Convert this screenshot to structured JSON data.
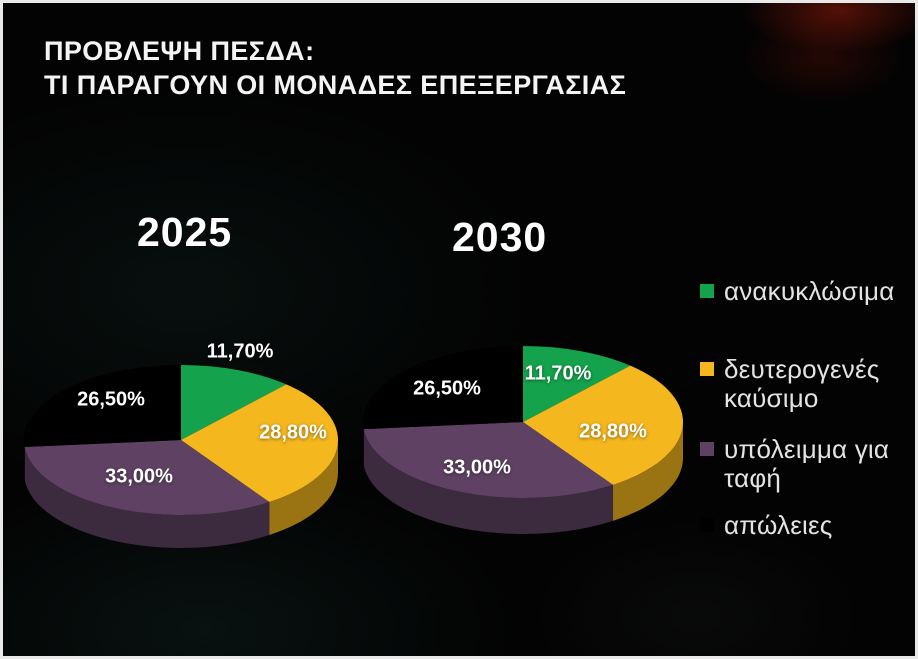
{
  "slide": {
    "title_line1": "ΠΡΟΒΛΕΨΗ ΠΕΣΔΑ:",
    "title_line2": "ΤΙ ΠΑΡΑΓΟΥΝ ΟΙ ΜΟΝΑΔΕΣ ΕΠΕΞΕΡΓΑΣΙΑΣ"
  },
  "chart_data": [
    {
      "type": "pie",
      "style": "3d",
      "title": "2025",
      "direction": "clockwise",
      "start_angle_deg": 0,
      "labels": [
        "ανακυκλώσιμα",
        "δευτερογενές καύσιμο",
        "υπόλειμμα για ταφή",
        "απώλειες"
      ],
      "values": [
        11.7,
        28.8,
        33.0,
        26.5
      ],
      "value_labels": [
        "11,70%",
        "28,80%",
        "33,00%",
        "26,50%"
      ],
      "colors": [
        "#14a24c",
        "#f4b71d",
        "#5f4263",
        "#000000"
      ]
    },
    {
      "type": "pie",
      "style": "3d",
      "title": "2030",
      "direction": "clockwise",
      "start_angle_deg": 0,
      "labels": [
        "ανακυκλώσιμα",
        "δευτερογενές καύσιμο",
        "υπόλειμμα για ταφή",
        "απώλειες"
      ],
      "values": [
        11.7,
        28.8,
        33.0,
        26.5
      ],
      "value_labels": [
        "11,70%",
        "28,80%",
        "33,00%",
        "26,50%"
      ],
      "colors": [
        "#14a24c",
        "#f4b71d",
        "#5f4263",
        "#000000"
      ]
    }
  ],
  "legend": {
    "position": "right",
    "items": [
      {
        "label": "ανακυκλώσιμα",
        "color": "#14a24c"
      },
      {
        "label": "δευτερογενές καύσιμο",
        "color": "#f4b71d"
      },
      {
        "label": "υπόλειμμα για ταφή",
        "color": "#5f4263"
      },
      {
        "label": "απώλειες",
        "color": "#000000"
      }
    ]
  }
}
